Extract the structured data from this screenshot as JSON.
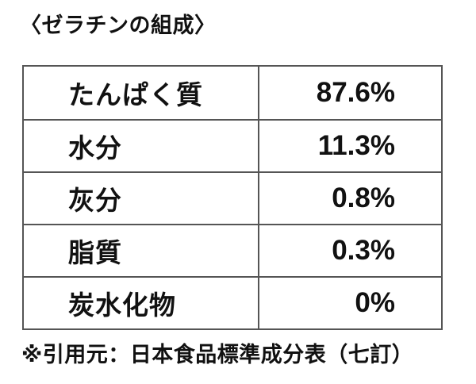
{
  "title": "〈ゼラチンの組成〉",
  "table": {
    "rows": [
      {
        "label": "たんぱく質",
        "value": "87.6%"
      },
      {
        "label": "水分",
        "value": "11.3%"
      },
      {
        "label": "灰分",
        "value": "0.8%"
      },
      {
        "label": "脂質",
        "value": "0.3%"
      },
      {
        "label": "炭水化物",
        "value": "0%"
      }
    ]
  },
  "footer": {
    "source_note": "※引用元：日本食品標準成分表（七訂）"
  },
  "colors": {
    "background": "#ffffff",
    "text": "#111111",
    "border": "#555555"
  },
  "chart_data": {
    "type": "table",
    "title": "〈ゼラチンの組成〉",
    "categories": [
      "たんぱく質",
      "水分",
      "灰分",
      "脂質",
      "炭水化物"
    ],
    "values": [
      87.6,
      11.3,
      0.8,
      0.3,
      0
    ],
    "unit": "%",
    "source_note": "※引用元：日本食品標準成分表（七訂）",
    "layout": "two-column table, labels left-aligned, values right-aligned, grid on"
  }
}
